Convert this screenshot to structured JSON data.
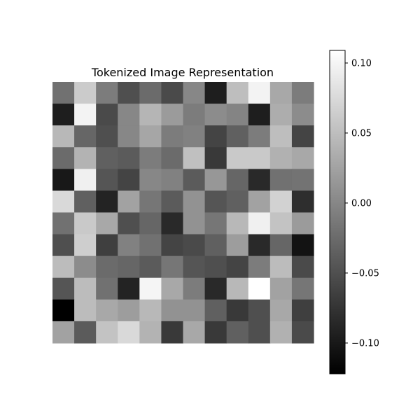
{
  "chart_data": {
    "type": "heatmap",
    "title": "Tokenized Image Representation",
    "colormap": "gray",
    "axes_visible": false,
    "colorbar": {
      "position": "right",
      "vmin": -0.122,
      "vmax": 0.109,
      "ticks": [
        0.1,
        0.05,
        0.0,
        -0.05,
        -0.1
      ],
      "tick_labels": [
        "0.10",
        "0.05",
        "0.00",
        "−0.05",
        "−0.10"
      ]
    },
    "rows": 12,
    "cols": 12,
    "values": [
      [
        -0.02,
        0.062,
        -0.01,
        -0.05,
        -0.025,
        -0.055,
        0.0,
        -0.095,
        0.05,
        0.098,
        0.03,
        -0.01
      ],
      [
        -0.095,
        0.098,
        -0.055,
        0.0,
        0.042,
        0.018,
        -0.01,
        0.005,
        -0.002,
        -0.095,
        0.035,
        0.005
      ],
      [
        0.045,
        -0.03,
        -0.05,
        0.0,
        0.028,
        -0.01,
        -0.005,
        -0.06,
        -0.035,
        -0.01,
        0.05,
        -0.06
      ],
      [
        -0.025,
        0.04,
        -0.035,
        -0.04,
        -0.01,
        -0.025,
        0.052,
        -0.07,
        0.06,
        0.06,
        0.038,
        0.03
      ],
      [
        -0.1,
        0.095,
        -0.045,
        -0.06,
        0.0,
        -0.005,
        -0.04,
        0.015,
        -0.03,
        -0.085,
        -0.02,
        -0.018
      ],
      [
        0.075,
        -0.035,
        -0.09,
        0.025,
        -0.015,
        -0.04,
        0.01,
        -0.045,
        -0.035,
        0.025,
        0.068,
        -0.08
      ],
      [
        -0.02,
        0.06,
        0.03,
        -0.05,
        -0.03,
        -0.085,
        0.01,
        -0.015,
        0.045,
        0.095,
        0.055,
        0.018
      ],
      [
        -0.05,
        0.065,
        -0.065,
        -0.005,
        -0.02,
        -0.06,
        -0.055,
        -0.035,
        0.02,
        -0.085,
        -0.03,
        -0.105
      ],
      [
        0.048,
        0.005,
        -0.025,
        -0.03,
        -0.04,
        -0.015,
        -0.045,
        -0.05,
        -0.06,
        -0.01,
        0.048,
        -0.055
      ],
      [
        -0.045,
        0.048,
        -0.02,
        -0.09,
        0.1,
        0.03,
        -0.01,
        -0.085,
        0.045,
        0.109,
        0.025,
        -0.015
      ],
      [
        -0.122,
        0.048,
        0.03,
        0.02,
        0.045,
        0.01,
        0.01,
        -0.035,
        -0.07,
        -0.05,
        0.03,
        -0.065
      ],
      [
        0.025,
        -0.04,
        0.055,
        0.075,
        0.04,
        -0.07,
        0.03,
        -0.07,
        -0.035,
        -0.05,
        0.038,
        -0.055
      ]
    ]
  }
}
